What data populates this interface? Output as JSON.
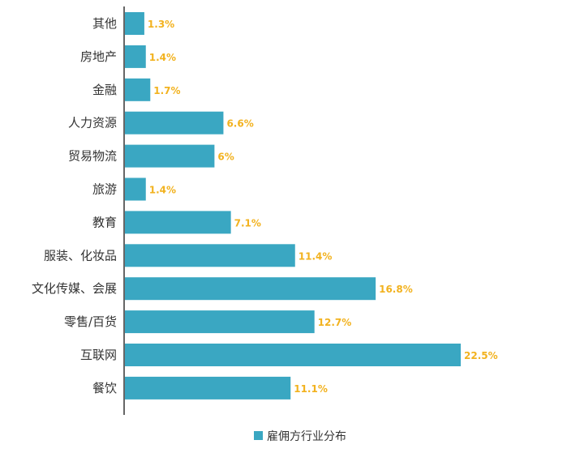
{
  "chart_data": {
    "type": "bar",
    "orientation": "horizontal",
    "categories": [
      "其他",
      "房地产",
      "金融",
      "人力资源",
      "贸易物流",
      "旅游",
      "教育",
      "服装、化妆品",
      "文化传媒、会展",
      "零售/百货",
      "互联网",
      "餐饮"
    ],
    "series": [
      {
        "name": "雇佣方行业分布",
        "values": [
          1.3,
          1.4,
          1.7,
          6.6,
          6,
          1.4,
          7.1,
          11.4,
          16.8,
          12.7,
          22.5,
          11.1
        ],
        "labels": [
          "1.3%",
          "1.4%",
          "1.7%",
          "6.6%",
          "6%",
          "1.4%",
          "7.1%",
          "11.4%",
          "16.8%",
          "12.7%",
          "22.5%",
          "11.1%"
        ]
      }
    ],
    "title": "",
    "xlabel": "",
    "ylabel": "",
    "xlim": [
      0,
      22.5
    ],
    "grid": false,
    "legend": "bottom",
    "colors": {
      "bar": "#3aa7c2",
      "value_label": "#f2b21f",
      "axis": "#333333",
      "text": "#333333"
    }
  }
}
